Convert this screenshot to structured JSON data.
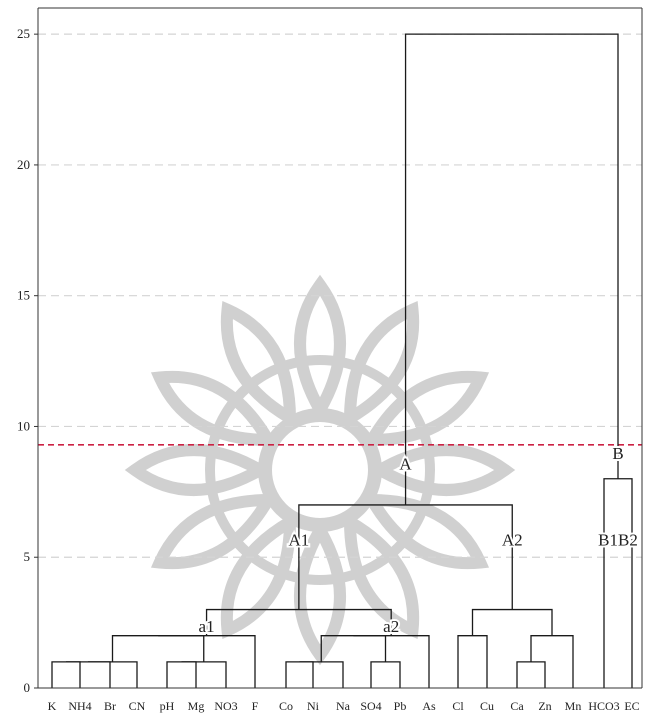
{
  "chart_data": {
    "type": "dendrogram",
    "ylim": [
      0,
      26
    ],
    "yticks": [
      0,
      5,
      10,
      15,
      20,
      25
    ],
    "grid": "dashed horizontal at y ticks",
    "leaves": [
      "K",
      "NH4",
      "Br",
      "CN",
      "pH",
      "Mg",
      "NO3",
      "F",
      "Co",
      "Ni",
      "Na",
      "SO4",
      "Pb",
      "As",
      "Cl",
      "Cu",
      "Ca",
      "Zn",
      "Mn",
      "HCO3",
      "EC"
    ],
    "merges": [
      {
        "left": {
          "leaf": 0
        },
        "right": {
          "leaf": 1
        },
        "height": 1.0
      },
      {
        "left": {
          "merge": 0
        },
        "right": {
          "leaf": 2
        },
        "height": 1.0
      },
      {
        "left": {
          "merge": 1
        },
        "right": {
          "leaf": 3
        },
        "height": 1.0
      },
      {
        "left": {
          "leaf": 4
        },
        "right": {
          "leaf": 5
        },
        "height": 1.0
      },
      {
        "left": {
          "merge": 3
        },
        "right": {
          "leaf": 6
        },
        "height": 1.0
      },
      {
        "left": {
          "merge": 2
        },
        "right": {
          "merge": 4
        },
        "height": 2.0
      },
      {
        "left": {
          "merge": 5
        },
        "right": {
          "leaf": 7
        },
        "height": 2.0
      },
      {
        "left": {
          "leaf": 8
        },
        "right": {
          "leaf": 9
        },
        "height": 1.0
      },
      {
        "left": {
          "merge": 7
        },
        "right": {
          "leaf": 10
        },
        "height": 1.0
      },
      {
        "left": {
          "leaf": 11
        },
        "right": {
          "leaf": 12
        },
        "height": 1.0
      },
      {
        "left": {
          "merge": 8
        },
        "right": {
          "merge": 9
        },
        "height": 2.0
      },
      {
        "left": {
          "merge": 10
        },
        "right": {
          "leaf": 13
        },
        "height": 2.0
      },
      {
        "left": {
          "merge": 6
        },
        "right": {
          "merge": 11
        },
        "height": 3.0
      },
      {
        "left": {
          "leaf": 14
        },
        "right": {
          "leaf": 15
        },
        "height": 2.0
      },
      {
        "left": {
          "leaf": 16
        },
        "right": {
          "leaf": 17
        },
        "height": 1.0
      },
      {
        "left": {
          "merge": 14
        },
        "right": {
          "leaf": 18
        },
        "height": 2.0
      },
      {
        "left": {
          "merge": 13
        },
        "right": {
          "merge": 15
        },
        "height": 3.0
      },
      {
        "left": {
          "merge": 12
        },
        "right": {
          "merge": 16
        },
        "height": 7.0
      },
      {
        "left": {
          "leaf": 19
        },
        "right": {
          "leaf": 20
        },
        "height": 8.0
      },
      {
        "left": {
          "merge": 17
        },
        "right": {
          "merge": 18
        },
        "height": 25.0
      }
    ],
    "cut_line": {
      "value": 9.3,
      "color": "#cc2244",
      "style": "dashed"
    },
    "cluster_labels": [
      {
        "text": "A",
        "merge": 19,
        "anchor": "left-child",
        "value": 8.5
      },
      {
        "text": "B",
        "merge": 19,
        "anchor": "right-child",
        "value": 8.9
      },
      {
        "text": "A1",
        "merge": 17,
        "anchor": "left-child",
        "value": 5.6
      },
      {
        "text": "A2",
        "merge": 17,
        "anchor": "right-child",
        "value": 5.6
      },
      {
        "text": "a1",
        "merge": 12,
        "anchor": "left-child",
        "value": 2.3
      },
      {
        "text": "a2",
        "merge": 12,
        "anchor": "right-child",
        "value": 2.3
      },
      {
        "text": "B1B2",
        "merge": 18,
        "anchor": "center",
        "value": 5.6
      }
    ],
    "colors": {
      "line": "#1a1a1a",
      "axis": "#333333",
      "grid": "#d4d4d4",
      "cut": "#cc2244",
      "watermark": "#c8c8c8"
    }
  }
}
